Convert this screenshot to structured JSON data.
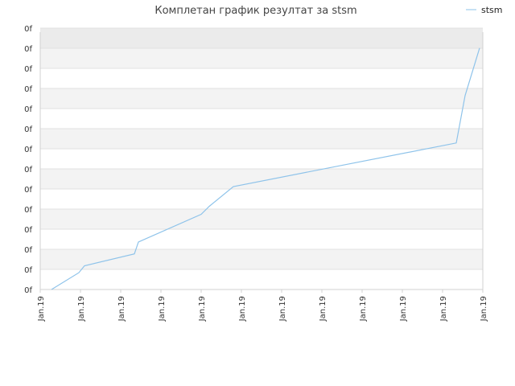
{
  "chart_data": {
    "type": "line",
    "title": "Комплетан график резултат за stsm",
    "xlabel": "",
    "ylabel": "",
    "legend": {
      "placement": "top-right",
      "entries": [
        "stsm"
      ]
    },
    "grid": true,
    "ytick_labels": [
      "0f",
      "0f",
      "0f",
      "0f",
      "0f",
      "0f",
      "0f",
      "0f",
      "0f",
      "0f",
      "0f",
      "0f",
      "0f",
      "0f"
    ],
    "xtick_labels": [
      "Jan.19",
      "Jan.19",
      "Jan.19",
      "Jan.19",
      "Jan.19",
      "Jan.19",
      "Jan.19",
      "Jan.19",
      "Jan.19",
      "Jan.19",
      "Jan.19",
      "Jan.19"
    ],
    "xlim": [
      0,
      11
    ],
    "ylim": [
      0,
      13
    ],
    "series": [
      {
        "name": "stsm",
        "color": "#8ec3ea",
        "points": [
          [
            0.28,
            0.0
          ],
          [
            0.96,
            0.85
          ],
          [
            1.1,
            1.2
          ],
          [
            2.34,
            1.8
          ],
          [
            2.44,
            2.4
          ],
          [
            4.0,
            3.8
          ],
          [
            4.2,
            4.2
          ],
          [
            4.8,
            5.2
          ],
          [
            10.34,
            7.4
          ],
          [
            10.56,
            9.8
          ],
          [
            10.92,
            12.2
          ]
        ]
      }
    ],
    "colors": {
      "band_light": "#f3f3f3",
      "band_top": "#ebebeb",
      "gridline": "#e2e2e2",
      "axis": "#d0d0d0"
    }
  }
}
